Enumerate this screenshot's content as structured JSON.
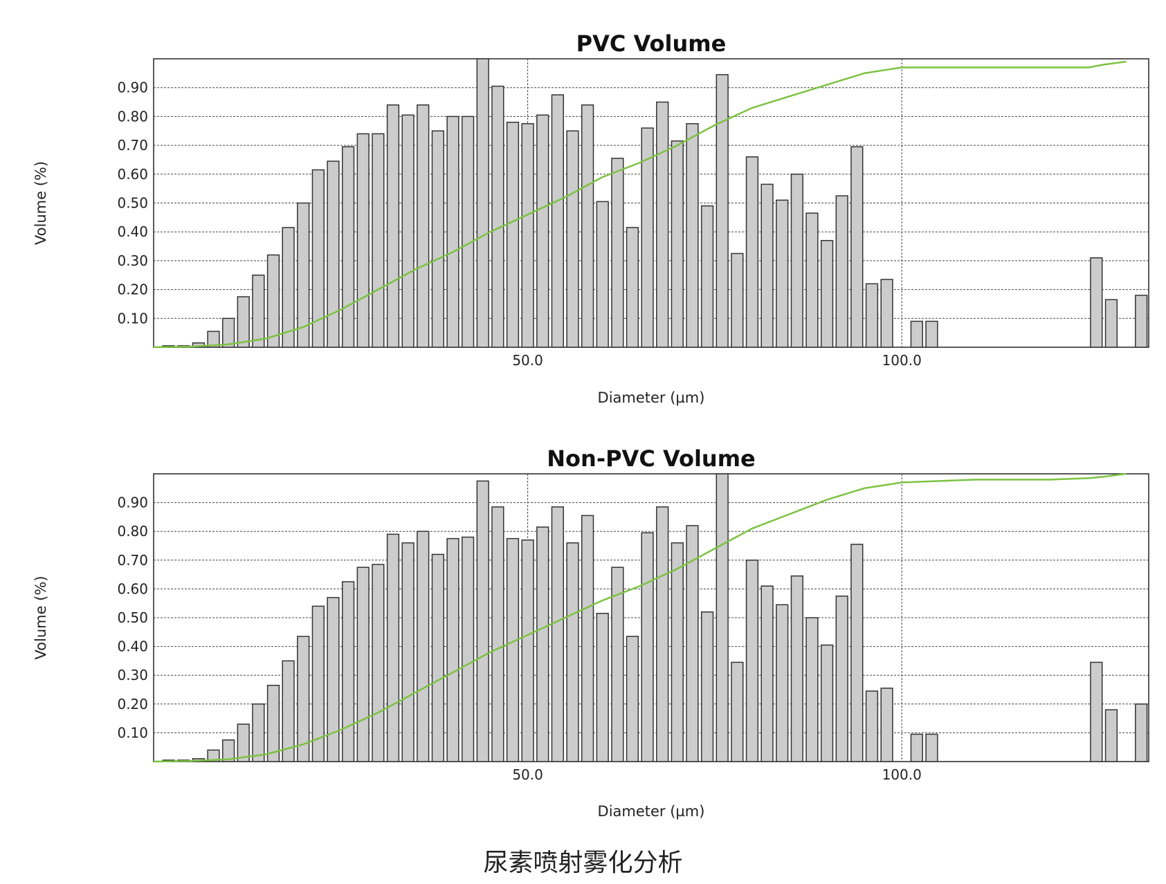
{
  "figure": {
    "caption": "尿素喷射雾化分析"
  },
  "chart_data": [
    {
      "type": "bar",
      "title": "PVC Volume",
      "xlabel": "Diameter (µm)",
      "ylabel": "Volume (%)",
      "x_ticks": [
        50.0,
        100.0
      ],
      "x_tick_labels": [
        "50.0",
        "100.0"
      ],
      "xlim": [
        0,
        133
      ],
      "y_ticks": [
        0.1,
        0.2,
        0.3,
        0.4,
        0.5,
        0.6,
        0.7,
        0.8,
        0.9
      ],
      "y_tick_labels": [
        "0.10",
        "0.20",
        "0.30",
        "0.40",
        "0.50",
        "0.60",
        "0.70",
        "0.80",
        "0.90"
      ],
      "ylim": [
        0,
        1.0
      ],
      "grid": true,
      "colors": {
        "bars": "#cccccc",
        "bar_edge": "#333333",
        "cumulative_line": "#7cc242",
        "grid": "#444444"
      },
      "series": [
        {
          "type": "bar",
          "x": [
            2,
            4,
            6,
            8,
            10,
            12,
            14,
            16,
            18,
            20,
            22,
            24,
            26,
            28,
            30,
            32,
            34,
            36,
            38,
            40,
            42,
            44,
            46,
            48,
            50,
            52,
            54,
            56,
            58,
            60,
            62,
            64,
            66,
            68,
            70,
            72,
            74,
            76,
            78,
            80,
            82,
            84,
            86,
            88,
            90,
            92,
            94,
            96,
            98,
            102,
            104,
            126,
            128,
            132
          ],
          "values": [
            0.005,
            0.005,
            0.015,
            0.055,
            0.1,
            0.175,
            0.25,
            0.32,
            0.415,
            0.5,
            0.615,
            0.645,
            0.695,
            0.74,
            0.74,
            0.84,
            0.805,
            0.84,
            0.75,
            0.8,
            0.8,
            1.0,
            0.905,
            0.78,
            0.775,
            0.805,
            0.875,
            0.75,
            0.84,
            0.505,
            0.655,
            0.415,
            0.76,
            0.85,
            0.715,
            0.775,
            0.49,
            0.945,
            0.325,
            0.66,
            0.565,
            0.51,
            0.6,
            0.465,
            0.37,
            0.525,
            0.695,
            0.22,
            0.235,
            0.09,
            0.09,
            0.31,
            0.165,
            0.18
          ]
        },
        {
          "type": "line",
          "x": [
            0,
            5,
            10,
            15,
            20,
            25,
            30,
            35,
            40,
            45,
            50,
            55,
            60,
            65,
            70,
            75,
            80,
            85,
            90,
            95,
            100,
            105,
            110,
            115,
            120,
            125,
            127,
            130
          ],
          "values": [
            0.0,
            0.002,
            0.01,
            0.03,
            0.07,
            0.13,
            0.2,
            0.27,
            0.33,
            0.4,
            0.46,
            0.52,
            0.59,
            0.64,
            0.7,
            0.77,
            0.83,
            0.87,
            0.91,
            0.95,
            0.97,
            0.97,
            0.97,
            0.97,
            0.97,
            0.97,
            0.98,
            0.99
          ]
        }
      ]
    },
    {
      "type": "bar",
      "title": "Non-PVC Volume",
      "xlabel": "Diameter (µm)",
      "ylabel": "Volume (%)",
      "x_ticks": [
        50.0,
        100.0
      ],
      "x_tick_labels": [
        "50.0",
        "100.0"
      ],
      "xlim": [
        0,
        133
      ],
      "y_ticks": [
        0.1,
        0.2,
        0.3,
        0.4,
        0.5,
        0.6,
        0.7,
        0.8,
        0.9
      ],
      "y_tick_labels": [
        "0.10",
        "0.20",
        "0.30",
        "0.40",
        "0.50",
        "0.60",
        "0.70",
        "0.80",
        "0.90"
      ],
      "ylim": [
        0,
        1.0
      ],
      "grid": true,
      "colors": {
        "bars": "#cccccc",
        "bar_edge": "#333333",
        "cumulative_line": "#7cc242",
        "grid": "#444444"
      },
      "series": [
        {
          "type": "bar",
          "x": [
            2,
            4,
            6,
            8,
            10,
            12,
            14,
            16,
            18,
            20,
            22,
            24,
            26,
            28,
            30,
            32,
            34,
            36,
            38,
            40,
            42,
            44,
            46,
            48,
            50,
            52,
            54,
            56,
            58,
            60,
            62,
            64,
            66,
            68,
            70,
            72,
            74,
            76,
            78,
            80,
            82,
            84,
            86,
            88,
            90,
            92,
            94,
            96,
            98,
            102,
            104,
            126,
            128,
            132
          ],
          "values": [
            0.005,
            0.005,
            0.01,
            0.04,
            0.075,
            0.13,
            0.2,
            0.265,
            0.35,
            0.435,
            0.54,
            0.57,
            0.625,
            0.675,
            0.685,
            0.79,
            0.76,
            0.8,
            0.72,
            0.775,
            0.78,
            0.975,
            0.885,
            0.775,
            0.77,
            0.815,
            0.885,
            0.76,
            0.855,
            0.515,
            0.675,
            0.435,
            0.795,
            0.885,
            0.76,
            0.82,
            0.52,
            1.0,
            0.345,
            0.7,
            0.61,
            0.545,
            0.645,
            0.5,
            0.405,
            0.575,
            0.755,
            0.245,
            0.255,
            0.095,
            0.095,
            0.345,
            0.18,
            0.2
          ]
        },
        {
          "type": "line",
          "x": [
            0,
            5,
            10,
            15,
            20,
            25,
            30,
            35,
            40,
            45,
            50,
            55,
            60,
            65,
            70,
            75,
            80,
            85,
            90,
            95,
            100,
            105,
            110,
            115,
            120,
            125,
            127,
            130
          ],
          "values": [
            0.0,
            0.002,
            0.008,
            0.025,
            0.06,
            0.11,
            0.17,
            0.24,
            0.31,
            0.38,
            0.44,
            0.5,
            0.56,
            0.61,
            0.67,
            0.74,
            0.81,
            0.86,
            0.91,
            0.95,
            0.97,
            0.975,
            0.98,
            0.98,
            0.98,
            0.985,
            0.99,
            1.0
          ]
        }
      ]
    }
  ]
}
